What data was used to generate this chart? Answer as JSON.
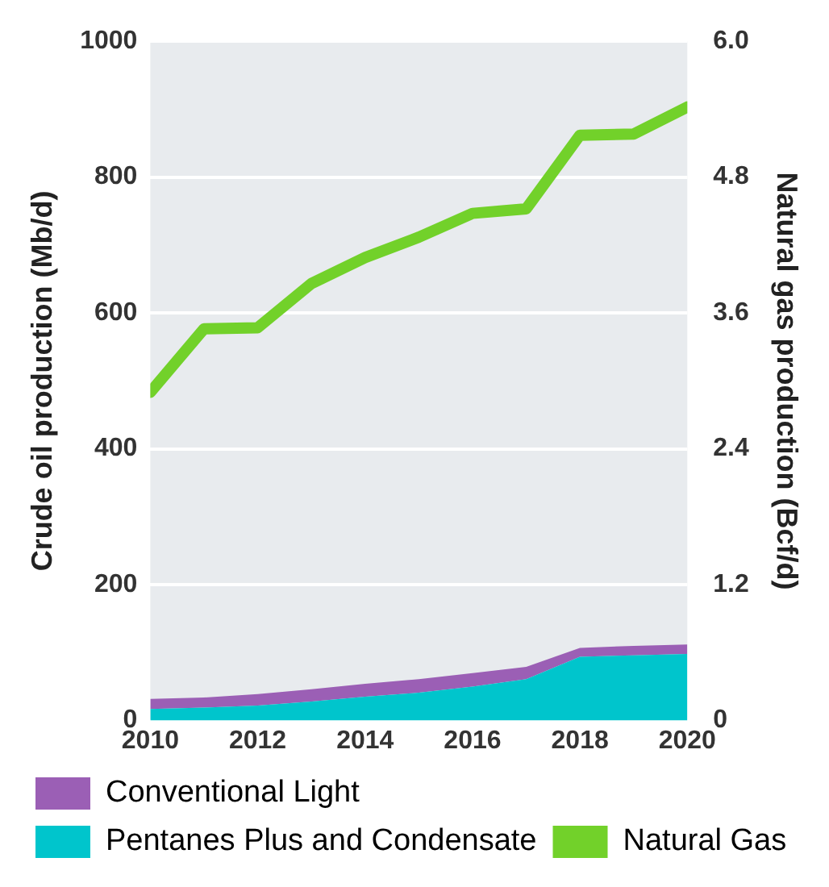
{
  "chart_data": {
    "type": "area",
    "stacked": true,
    "x": [
      2010,
      2011,
      2012,
      2013,
      2014,
      2015,
      2016,
      2017,
      2018,
      2019,
      2020
    ],
    "series": [
      {
        "name": "Pentanes Plus and Condensate",
        "color": "#00c5cc",
        "values": [
          17,
          19,
          22,
          28,
          35,
          41,
          50,
          61,
          94,
          96,
          98
        ]
      },
      {
        "name": "Conventional Light",
        "color": "#9b5fb5",
        "values": [
          15,
          15,
          17,
          18,
          19,
          20,
          20,
          18,
          13,
          14,
          14
        ]
      },
      {
        "name": "Natural Gas",
        "type": "line",
        "axis": "y2",
        "color": "#72d12a",
        "values": [
          2.9,
          3.46,
          3.47,
          3.86,
          4.09,
          4.27,
          4.48,
          4.52,
          5.17,
          5.18,
          5.42
        ]
      }
    ],
    "xlim": [
      2010,
      2020
    ],
    "xticks": [
      2010,
      2012,
      2014,
      2016,
      2018,
      2020
    ],
    "ylim": [
      0,
      1000
    ],
    "yticks": [
      0,
      200,
      400,
      600,
      800,
      1000
    ],
    "y2lim": [
      0,
      6
    ],
    "y2ticks": [
      0,
      1.2,
      2.4,
      3.6,
      4.8,
      {
        "value": 6,
        "label": "6.0"
      }
    ],
    "ylabel": "Crude oil production (Mb/d)",
    "y2label": "Natural gas production (Bcf/d)",
    "grid": "y",
    "legend": "bottom",
    "marker": "none"
  }
}
